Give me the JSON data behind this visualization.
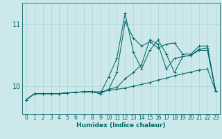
{
  "xlabel": "Humidex (Indice chaleur)",
  "bg_color": "#cce8ea",
  "line_color": "#006868",
  "grid_color": "#aad4d4",
  "x_ticks": [
    0,
    1,
    2,
    3,
    4,
    5,
    6,
    7,
    8,
    9,
    10,
    11,
    12,
    13,
    14,
    15,
    16,
    17,
    18,
    19,
    20,
    21,
    22,
    23
  ],
  "y_ticks": [
    10,
    11
  ],
  "ylim": [
    9.55,
    11.35
  ],
  "xlim": [
    -0.5,
    23.5
  ],
  "series": [
    [
      9.78,
      9.88,
      9.88,
      9.88,
      9.88,
      9.89,
      9.9,
      9.91,
      9.91,
      9.91,
      9.93,
      9.95,
      9.97,
      10.0,
      10.03,
      10.06,
      10.1,
      10.13,
      10.17,
      10.2,
      10.23,
      10.26,
      10.28,
      9.92
    ],
    [
      9.78,
      9.88,
      9.88,
      9.88,
      9.88,
      9.89,
      9.9,
      9.91,
      9.91,
      9.88,
      9.95,
      10.22,
      11.05,
      10.78,
      10.65,
      10.72,
      10.62,
      10.68,
      10.7,
      10.52,
      10.52,
      10.65,
      10.65,
      9.92
    ],
    [
      9.78,
      9.88,
      9.88,
      9.88,
      9.88,
      9.89,
      9.9,
      9.91,
      9.91,
      9.88,
      10.15,
      10.45,
      11.18,
      10.55,
      10.28,
      10.58,
      10.75,
      10.52,
      10.22,
      10.48,
      10.5,
      10.6,
      10.62,
      9.92
    ],
    [
      9.78,
      9.88,
      9.88,
      9.88,
      9.88,
      9.89,
      9.9,
      9.91,
      9.91,
      9.88,
      9.95,
      9.98,
      10.12,
      10.22,
      10.35,
      10.75,
      10.68,
      10.28,
      10.45,
      10.48,
      10.5,
      10.58,
      10.58,
      9.92
    ]
  ],
  "marker": "+",
  "markersize": 3.5,
  "linewidth": 0.75,
  "xlabel_fontsize": 6.5,
  "tick_fontsize": 5.5,
  "ytick_fontsize": 7
}
